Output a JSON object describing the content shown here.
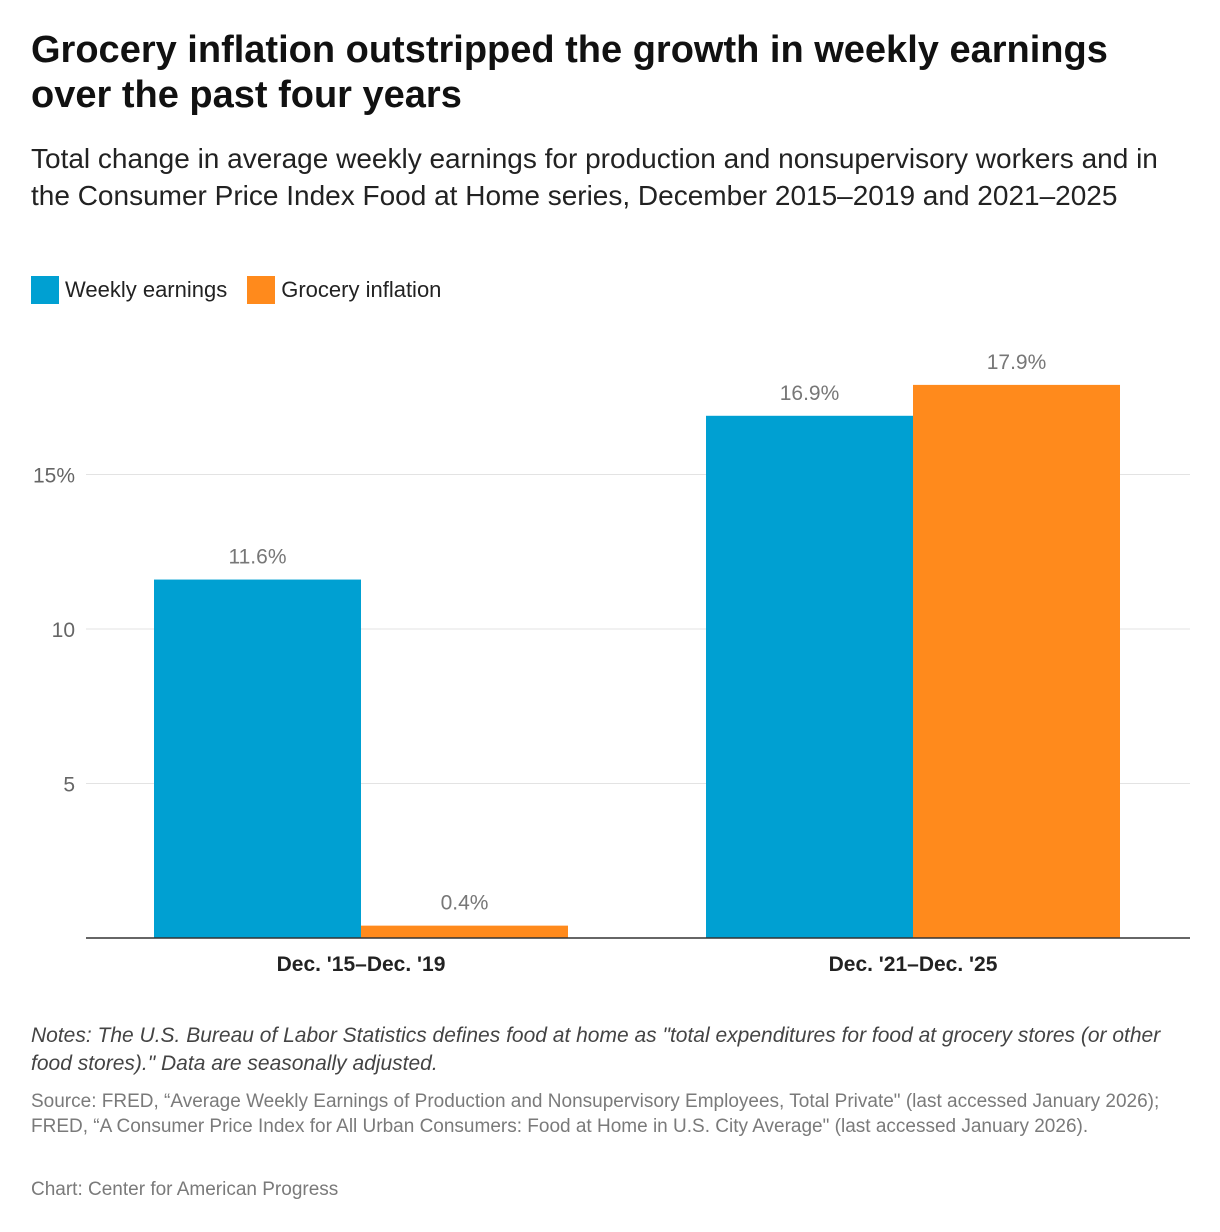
{
  "header": {
    "title": "Grocery inflation outstripped the growth in weekly earnings over the past four years",
    "subtitle": "Total change in average weekly earnings for production and nonsupervisory workers and in the Consumer Price Index Food at Home series, December 2015–2019 and 2021–2025"
  },
  "legend": [
    {
      "label": "Weekly earnings",
      "color": "#00a0d2"
    },
    {
      "label": "Grocery inflation",
      "color": "#ff8a1c"
    }
  ],
  "chart_data": {
    "type": "bar",
    "categories": [
      "Dec. '15–Dec. '19",
      "Dec. '21–Dec. '25"
    ],
    "series": [
      {
        "name": "Weekly earnings",
        "values": [
          11.6,
          16.9
        ],
        "labels": [
          "11.6%",
          "16.9%"
        ],
        "color": "#00a0d2"
      },
      {
        "name": "Grocery inflation",
        "values": [
          0.4,
          17.9
        ],
        "labels": [
          "0.4%",
          "17.9%"
        ],
        "color": "#ff8a1c"
      }
    ],
    "yticks": [
      5,
      10,
      15
    ],
    "ytick_labels": [
      "5",
      "10",
      "15%"
    ],
    "ylim": [
      0,
      19.5
    ],
    "grid": true,
    "legend_position": "top-left",
    "xlabel": "",
    "ylabel": ""
  },
  "footer": {
    "notes": "Notes: The U.S. Bureau of Labor Statistics defines food at home as \"total expenditures for food at grocery stores (or other food stores).\" Data are seasonally adjusted.",
    "source": "Source: FRED, “Average Weekly Earnings of Production and Nonsupervisory Employees, Total Private\" (last accessed January 2026); FRED, “A Consumer Price Index for All Urban Consumers: Food at Home in U.S. City Average\" (last accessed January 2026).",
    "credit": "Chart: Center for American Progress"
  }
}
